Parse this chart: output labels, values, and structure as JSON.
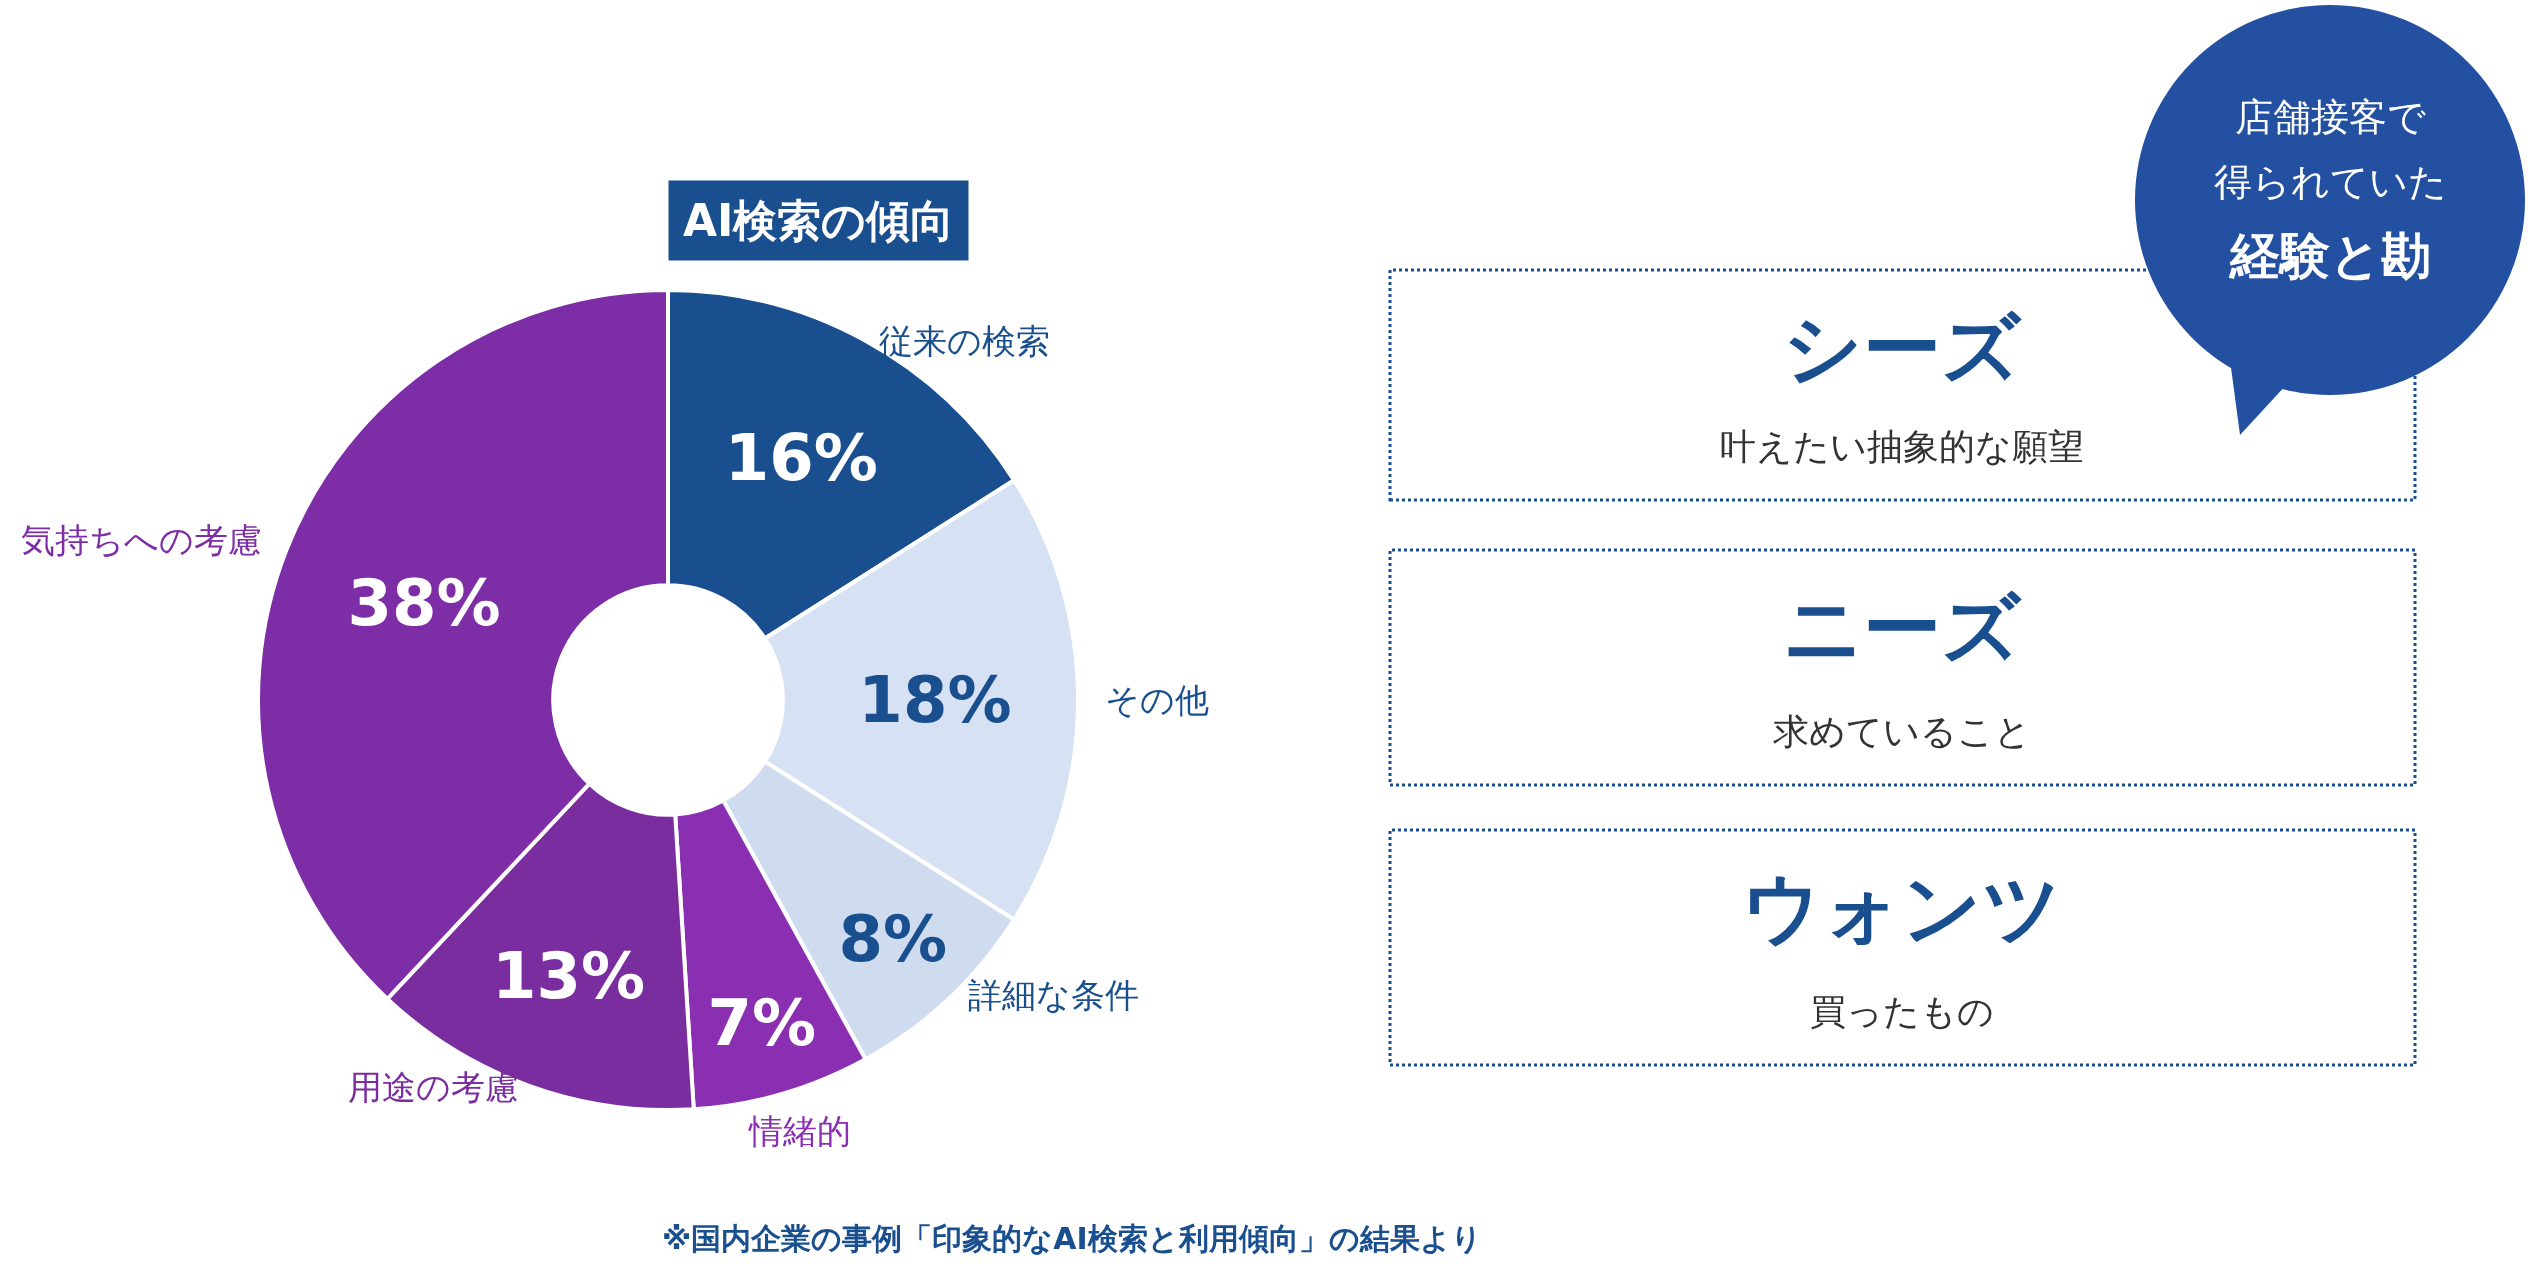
{
  "chart_data": [
    {
      "type": "donut",
      "title": "AI検索の傾向",
      "categories": [
        "従来の検索",
        "その他",
        "詳細な条件",
        "情緒的",
        "用途の考慮",
        "気持ちへの考慮"
      ],
      "values": [
        16,
        18,
        8,
        7,
        13,
        38
      ],
      "value_labels": [
        "16%",
        "18%",
        "8%",
        "7%",
        "13%",
        "38%"
      ],
      "colors": [
        "#1a4f8f",
        "#d6e1f3",
        "#cfdcef",
        "#8b2fb2",
        "#7a2d9e",
        "#7d2da6"
      ],
      "annotations": [
        "※国内企業の事例「印象的なAI検索と利用傾向」の結果より"
      ]
    },
    {
      "type": "other",
      "annotations": [
        "店舗接客で",
        "得られていた",
        "経験と勘",
        "シーズ",
        "叶えたい抽象的な願望",
        "ニーズ",
        "求めていること",
        "ウォンツ",
        "買ったもの"
      ]
    }
  ]
}
